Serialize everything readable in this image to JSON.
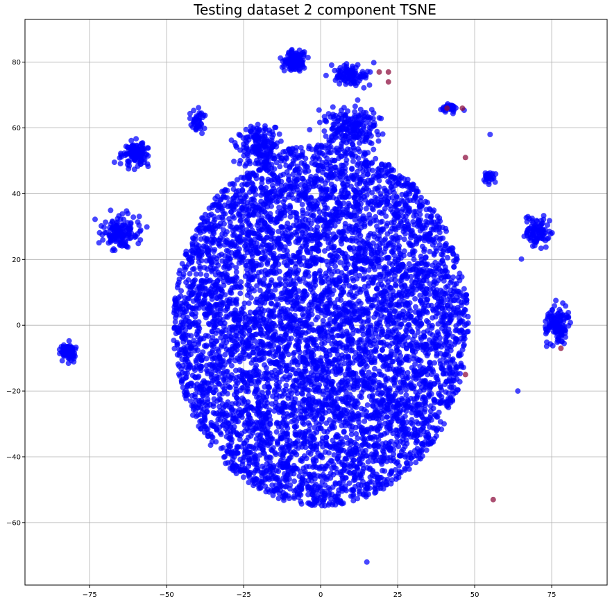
{
  "chart_data": {
    "type": "scatter",
    "title": "Testing dataset 2 component TSNE",
    "xlabel": "",
    "ylabel": "",
    "xlim": [
      -96,
      93
    ],
    "ylim": [
      -79,
      93
    ],
    "xticks": [
      -75,
      -50,
      -25,
      0,
      25,
      50,
      75
    ],
    "yticks": [
      -60,
      -40,
      -20,
      0,
      20,
      40,
      60,
      80
    ],
    "xtick_labels": [
      "−75",
      "−50",
      "−25",
      "0",
      "25",
      "50",
      "75"
    ],
    "ytick_labels": [
      "−60",
      "−40",
      "−20",
      "0",
      "20",
      "40",
      "60",
      "80"
    ],
    "grid": true,
    "colors": {
      "class0": "#0000ff",
      "class1": "#8b0a3a"
    },
    "series": [
      {
        "color": "#0000ff",
        "clusters": [
          {
            "center": [
              -8,
              80
            ],
            "radius": [
              5,
              4
            ],
            "count": 120
          },
          {
            "center": [
              10,
              76
            ],
            "radius": [
              8,
              4
            ],
            "count": 100
          },
          {
            "center": [
              -60,
              52
            ],
            "radius": [
              6,
              5
            ],
            "count": 120
          },
          {
            "center": [
              -40,
              62
            ],
            "radius": [
              3,
              4
            ],
            "count": 40
          },
          {
            "center": [
              42,
              66
            ],
            "radius": [
              4,
              2
            ],
            "count": 30
          },
          {
            "center": [
              -82,
              -8
            ],
            "radius": [
              3,
              3
            ],
            "count": 90
          },
          {
            "center": [
              77,
              0
            ],
            "radius": [
              5,
              7
            ],
            "count": 120
          },
          {
            "center": [
              70,
              28
            ],
            "radius": [
              6,
              6
            ],
            "count": 90
          },
          {
            "center": [
              55,
              45
            ],
            "radius": [
              3,
              3
            ],
            "count": 25
          },
          {
            "center": [
              -65,
              28
            ],
            "radius": [
              8,
              6
            ],
            "count": 150
          },
          {
            "center": [
              -20,
              55
            ],
            "radius": [
              8,
              7
            ],
            "count": 160
          },
          {
            "center": [
              10,
              60
            ],
            "radius": [
              12,
              8
            ],
            "count": 200
          },
          {
            "center": [
              0,
              0
            ],
            "radius": [
              48,
              55
            ],
            "count": 6500
          }
        ],
        "outliers": [
          [
            15,
            -72
          ],
          [
            64,
            -20
          ],
          [
            55,
            58
          ]
        ]
      },
      {
        "color": "#8b0a3a",
        "points": [
          [
            19,
            77
          ],
          [
            22,
            77
          ],
          [
            22,
            74
          ],
          [
            41,
            66
          ],
          [
            46,
            66
          ],
          [
            47,
            51
          ],
          [
            78,
            -7
          ],
          [
            47,
            -15
          ],
          [
            56,
            -53
          ]
        ]
      }
    ]
  }
}
